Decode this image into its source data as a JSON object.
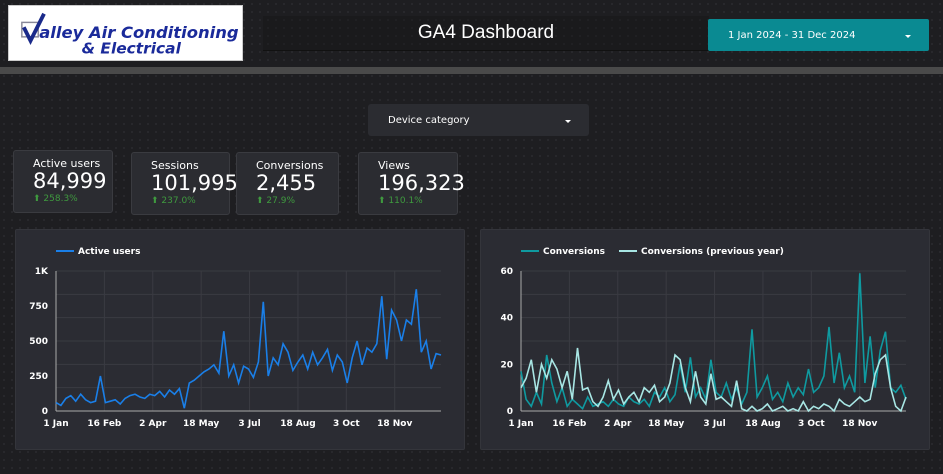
{
  "header": {
    "logo_text": "Valley Air Conditioning & Electrical",
    "title": "GA4 Dashboard",
    "date_range": "1 Jan 2024 - 31 Dec 2024"
  },
  "filters": {
    "device_category": "Device category"
  },
  "kpis": [
    {
      "label": "Active users",
      "value": "84,999",
      "change": "258.3%"
    },
    {
      "label": "Sessions",
      "value": "101,995",
      "change": "237.0%"
    },
    {
      "label": "Conversions",
      "value": "2,455",
      "change": "27.9%"
    },
    {
      "label": "Views",
      "value": "196,323",
      "change": "110.1%"
    }
  ],
  "colors": {
    "accent": "#0a8a92",
    "active_users": "#1a7fe8",
    "conversions": "#0f9aa0",
    "conversions_prev": "#a8e6e4",
    "positive": "#3f9a3f"
  },
  "chart_data": [
    {
      "type": "line",
      "series": [
        {
          "name": "Active users",
          "values": [
            60,
            40,
            90,
            110,
            70,
            120,
            80,
            60,
            70,
            250,
            60,
            70,
            80,
            50,
            90,
            110,
            120,
            100,
            90,
            120,
            110,
            140,
            100,
            150,
            120,
            160,
            20,
            200,
            220,
            250,
            280,
            300,
            330,
            270,
            570,
            250,
            330,
            200,
            320,
            300,
            240,
            350,
            780,
            250,
            380,
            330,
            480,
            420,
            290,
            350,
            400,
            300,
            420,
            330,
            380,
            440,
            290,
            400,
            350,
            200,
            380,
            500,
            330,
            450,
            420,
            480,
            820,
            370,
            720,
            650,
            500,
            650,
            620,
            870,
            420,
            500,
            300,
            410,
            400
          ]
        }
      ],
      "x_range": [
        "1 Jan 2024",
        "31 Dec 2024"
      ],
      "x_ticks": [
        "1 Jan",
        "16 Feb",
        "2 Apr",
        "18 May",
        "3 Jul",
        "18 Aug",
        "3 Oct",
        "18 Nov"
      ],
      "y_ticks": [
        "0",
        "250",
        "500",
        "750",
        "1K"
      ],
      "ylim": [
        0,
        1000
      ],
      "legend": "top-left",
      "grid": true
    },
    {
      "type": "line",
      "series": [
        {
          "name": "Conversions",
          "values": [
            17,
            5,
            2,
            8,
            3,
            24,
            12,
            4,
            10,
            2,
            5,
            3,
            1,
            6,
            2,
            3,
            4,
            2,
            5,
            3,
            2,
            6,
            4,
            3,
            5,
            2,
            8,
            6,
            10,
            4,
            7,
            20,
            8,
            23,
            6,
            10,
            5,
            22,
            8,
            6,
            12,
            5,
            10,
            3,
            8,
            35,
            6,
            10,
            15,
            5,
            8,
            4,
            12,
            6,
            10,
            7,
            18,
            8,
            10,
            15,
            36,
            12,
            25,
            10,
            15,
            8,
            59,
            12,
            32,
            10,
            26,
            34,
            10,
            8,
            11,
            5
          ]
        },
        {
          "name": "Conversions (previous year)",
          "values": [
            10,
            14,
            22,
            8,
            20,
            14,
            22,
            18,
            10,
            17,
            5,
            27,
            9,
            10,
            4,
            2,
            6,
            13,
            5,
            9,
            3,
            6,
            8,
            4,
            10,
            8,
            11,
            4,
            6,
            12,
            24,
            22,
            10,
            4,
            17,
            6,
            3,
            16,
            5,
            6,
            4,
            2,
            13,
            1,
            0,
            2,
            0,
            1,
            3,
            0,
            1,
            2,
            0,
            1,
            0,
            4,
            0,
            2,
            1,
            3,
            2,
            0,
            5,
            3,
            2,
            4,
            6,
            4,
            5,
            16,
            22,
            24,
            10,
            2,
            0,
            6
          ]
        }
      ],
      "x_range": [
        "1 Jan 2024",
        "31 Dec 2024"
      ],
      "x_ticks": [
        "1 Jan",
        "16 Feb",
        "2 Apr",
        "18 May",
        "3 Jul",
        "18 Aug",
        "3 Oct",
        "18 Nov"
      ],
      "y_ticks": [
        "0",
        "20",
        "40",
        "60"
      ],
      "ylim": [
        0,
        60
      ],
      "legend": "top-left",
      "grid": true
    }
  ]
}
